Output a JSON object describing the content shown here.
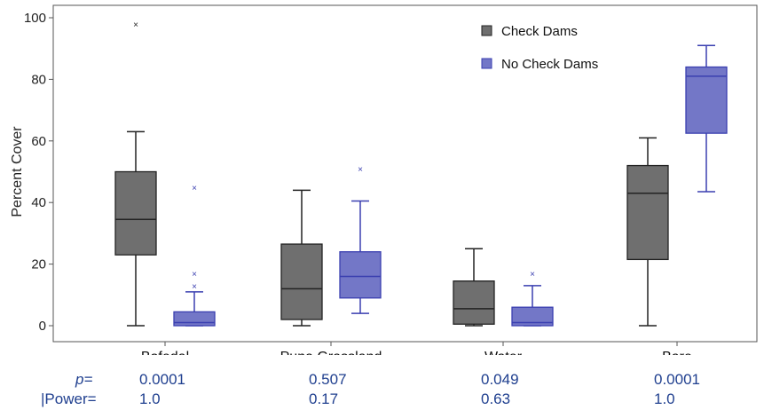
{
  "chart_data": {
    "type": "box",
    "ylabel": "Percent Cover",
    "ylim": [
      0,
      100
    ],
    "yticks": [
      0,
      20,
      40,
      60,
      80,
      100
    ],
    "categories": [
      "Bofedal",
      "Puna Grassland",
      "Water",
      "Bare"
    ],
    "legend_position": "top-right",
    "series": [
      {
        "name": "Check Dams",
        "color": "#6f6f6f",
        "boxes": [
          {
            "min": 0,
            "q1": 23,
            "median": 34.5,
            "q3": 50,
            "max": 63,
            "outliers": [
              98
            ]
          },
          {
            "min": 0,
            "q1": 2,
            "median": 12,
            "q3": 26.5,
            "max": 44,
            "outliers": []
          },
          {
            "min": 0,
            "q1": 0.5,
            "median": 5.5,
            "q3": 14.5,
            "max": 25,
            "outliers": []
          },
          {
            "min": 0,
            "q1": 21.5,
            "median": 43,
            "q3": 52,
            "max": 61,
            "outliers": []
          }
        ]
      },
      {
        "name": "No Check Dams",
        "color": "#7377c7",
        "boxes": [
          {
            "min": 0,
            "q1": 0,
            "median": 1,
            "q3": 4.5,
            "max": 11,
            "outliers": [
              13,
              17,
              45
            ]
          },
          {
            "min": 4,
            "q1": 9,
            "median": 16,
            "q3": 24,
            "max": 40.5,
            "outliers": [
              51
            ]
          },
          {
            "min": 0,
            "q1": 0,
            "median": 1,
            "q3": 6,
            "max": 13,
            "outliers": [
              17
            ]
          },
          {
            "min": 43.5,
            "q1": 62.5,
            "median": 81,
            "q3": 84,
            "max": 91,
            "outliers": []
          }
        ]
      }
    ]
  },
  "stats": {
    "p_label": "p=",
    "power_label": "|Power=",
    "p_values": [
      "0.0001",
      "0.507",
      "0.049",
      "0.0001"
    ],
    "power_values": [
      "1.0",
      "0.17",
      "0.63",
      "1.0"
    ]
  }
}
